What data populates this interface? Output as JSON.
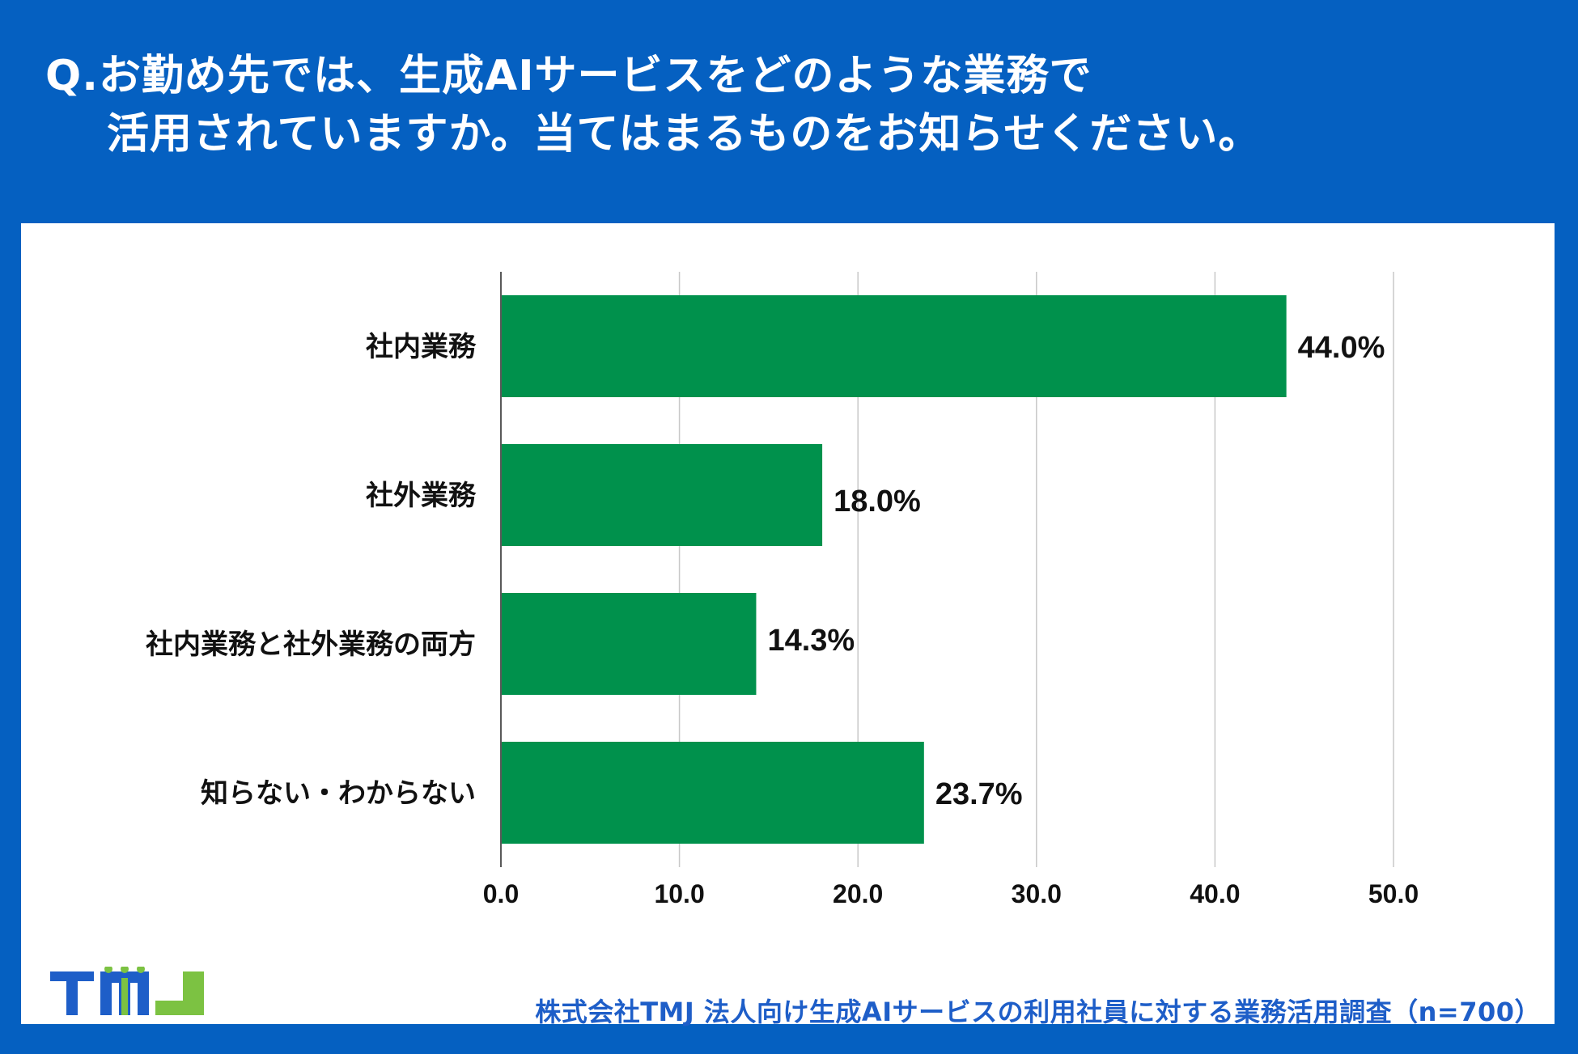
{
  "header": {
    "title_line1": "Q.お勤め先では、生成AIサービスをどのような業務で",
    "title_line2": "活用されていますか。当てはまるものをお知らせください。"
  },
  "chart_data": {
    "type": "bar",
    "orientation": "horizontal",
    "categories": [
      "社内業務",
      "社外業務",
      "社内業務と社外業務の両方",
      "知らない・わからない"
    ],
    "values": [
      44.0,
      18.0,
      14.3,
      23.7
    ],
    "value_labels": [
      "44.0%",
      "18.0%",
      "14.3%",
      "23.7%"
    ],
    "x_ticks": [
      0,
      10,
      20,
      30,
      40,
      50
    ],
    "x_tick_labels": [
      "0.0",
      "10.0",
      "20.0",
      "30.0",
      "40.0",
      "50.0"
    ],
    "xlim": [
      0,
      50
    ],
    "grid": true,
    "bar_color": "#00914C"
  },
  "logo": {
    "letters": [
      "T",
      "M",
      "J"
    ],
    "blue": "#1E5EC8",
    "green": "#7CC242"
  },
  "footer": {
    "source": "株式会社TMJ  法人向け生成AIサービスの利用社員に対する業務活用調査（n=700）"
  },
  "colors": {
    "background": "#0560C1",
    "panel": "#FFFFFF",
    "gridline": "#C8C8C8",
    "axis": "#595959"
  }
}
